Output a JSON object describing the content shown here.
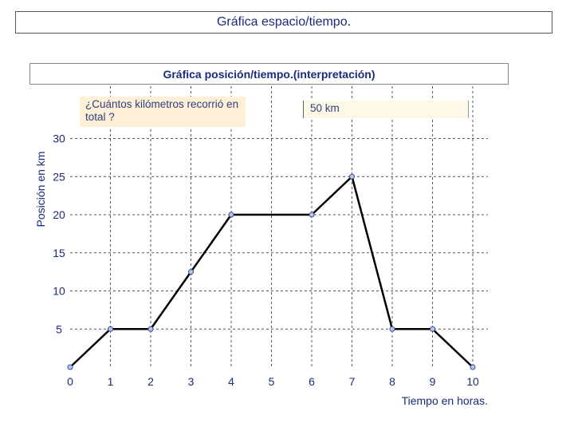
{
  "page": {
    "title": "Gráfica espacio/tiempo",
    "title_dot": "."
  },
  "panel": {
    "title": "Gráfica posición/tiempo.(interpretación)",
    "question": "¿Cuántos kilómetros recorrió en total ?",
    "answer": "50 km"
  },
  "chart_data": {
    "type": "line",
    "xlabel": "Tiempo en horas.",
    "ylabel": "Posición en km",
    "x": [
      0,
      1,
      2,
      3,
      4,
      6,
      7,
      8,
      9,
      10
    ],
    "y": [
      0,
      5,
      5,
      12.5,
      20,
      20,
      25,
      5,
      5,
      0
    ],
    "xlim": [
      0,
      10.5
    ],
    "ylim": [
      0,
      33
    ],
    "x_ticks": [
      "0",
      "1",
      "2",
      "3",
      "4",
      "5",
      "6",
      "7",
      "8",
      "9",
      "10"
    ],
    "y_ticks": [
      "5",
      "10",
      "15",
      "20",
      "25",
      "30"
    ],
    "grid": true,
    "colors": {
      "line": "#000000",
      "point_fill": "#b9c6e8",
      "point_stroke": "#3a4f9a",
      "grid": "#555555",
      "text": "#1a2b7a"
    }
  }
}
